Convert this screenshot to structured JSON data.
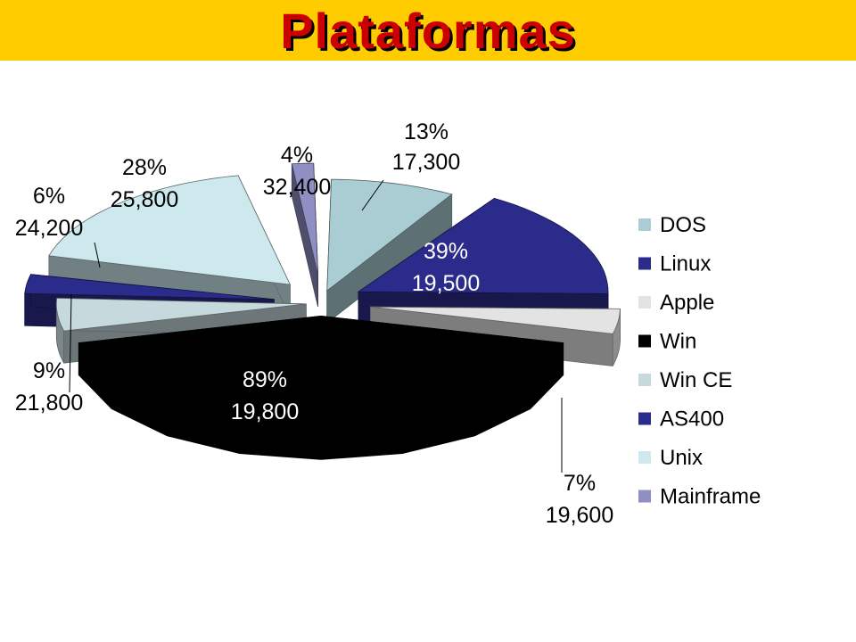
{
  "title": "Plataformas",
  "chart_data": {
    "type": "pie",
    "title": "Plataformas",
    "legend_position": "right",
    "series": [
      {
        "name": "DOS",
        "percent": "13%",
        "value": "17,300",
        "share": 0.13,
        "color": "#a9cdd2"
      },
      {
        "name": "Linux",
        "percent": "39%",
        "value": "19,500",
        "share": 0.39,
        "color": "#2b2b8c"
      },
      {
        "name": "Apple",
        "percent": "7%",
        "value": "19,600",
        "share": 0.07,
        "color": "#e3e3e3"
      },
      {
        "name": "Win",
        "percent": "89%",
        "value": "19,800",
        "share": 0.89,
        "color": "#000000"
      },
      {
        "name": "Win CE",
        "percent": "9%",
        "value": "21,800",
        "share": 0.09,
        "color": "#c6d9dc"
      },
      {
        "name": "AS400",
        "percent": "6%",
        "value": "24,200",
        "share": 0.06,
        "color": "#2b2b8c"
      },
      {
        "name": "Unix",
        "percent": "28%",
        "value": "25,800",
        "share": 0.28,
        "color": "#cde9ee"
      },
      {
        "name": "Mainframe",
        "percent": "4%",
        "value": "32,400",
        "share": 0.04,
        "color": "#8f8fc4"
      }
    ]
  }
}
